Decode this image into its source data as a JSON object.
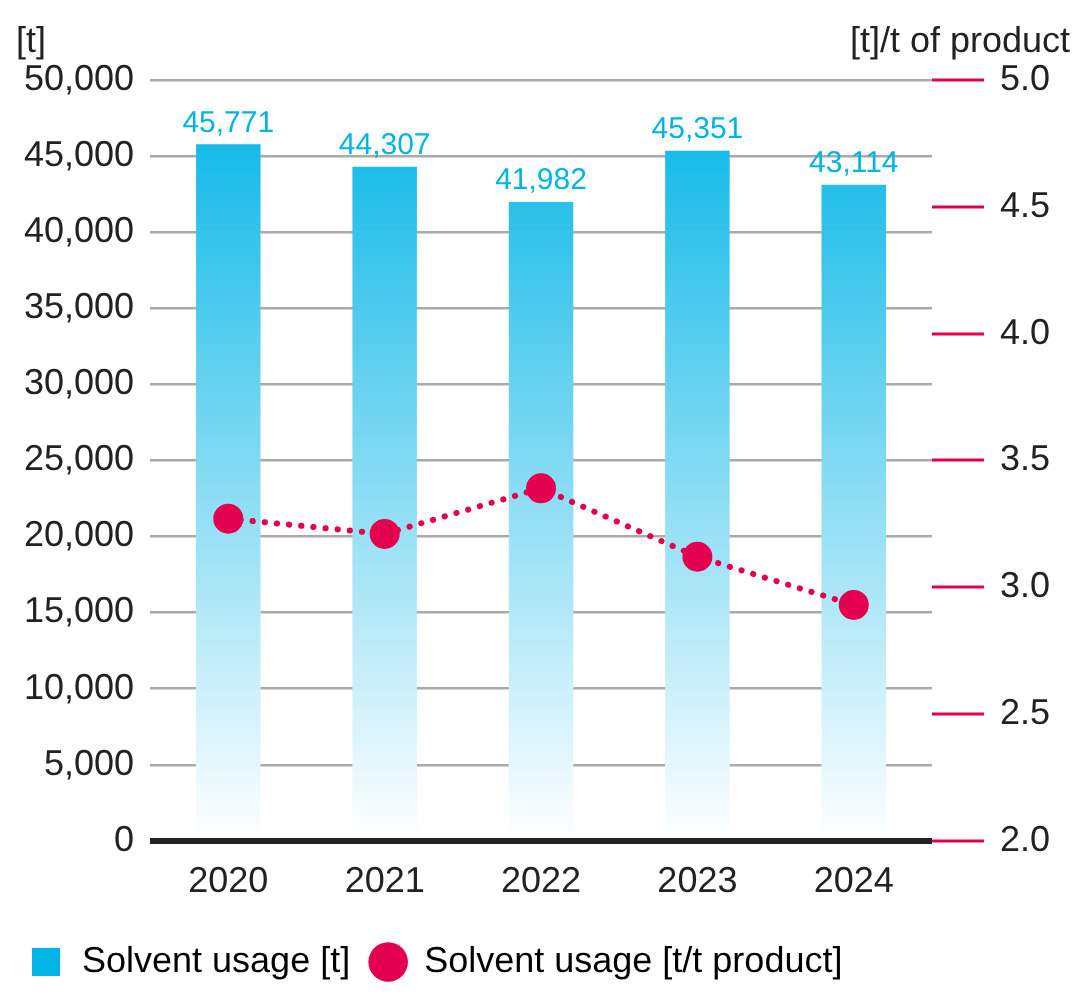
{
  "chart_data": {
    "type": "bar",
    "ylabel": "[t]",
    "y2label": "[t]/t of product",
    "categories": [
      "2020",
      "2021",
      "2022",
      "2023",
      "2024"
    ],
    "series": [
      {
        "name": "Solvent usage [t]",
        "color": "#00b4e6",
        "values": [
          45771,
          44307,
          41982,
          45351,
          43114
        ],
        "value_labels": [
          "45,771",
          "44,307",
          "41,982",
          "45,351",
          "43,114"
        ]
      },
      {
        "name": "Solvent usage [t/t product]",
        "type": "line",
        "axis": "y2",
        "color": "#e5004f",
        "marker": "circle",
        "line_style": "dotted",
        "values": [
          3.27,
          3.21,
          3.39,
          3.12,
          2.93
        ]
      }
    ],
    "ylim": [
      0,
      50000
    ],
    "yticks": [
      {
        "value": 0,
        "label": "0"
      },
      {
        "value": 5000,
        "label": "5,000"
      },
      {
        "value": 10000,
        "label": "10,000"
      },
      {
        "value": 15000,
        "label": "15,000"
      },
      {
        "value": 20000,
        "label": "20,000"
      },
      {
        "value": 25000,
        "label": "25,000"
      },
      {
        "value": 30000,
        "label": "30,000"
      },
      {
        "value": 35000,
        "label": "35,000"
      },
      {
        "value": 40000,
        "label": "40,000"
      },
      {
        "value": 45000,
        "label": "45,000"
      },
      {
        "value": 50000,
        "label": "50,000"
      }
    ],
    "y2lim": [
      2,
      5
    ],
    "y2ticks": [
      {
        "value": 2,
        "label": "2.0"
      },
      {
        "value": 2.5,
        "label": "2.5"
      },
      {
        "value": 3,
        "label": "3.0"
      },
      {
        "value": 3.5,
        "label": "3.5"
      },
      {
        "value": 4,
        "label": "4.0"
      },
      {
        "value": 4.5,
        "label": "4.5"
      },
      {
        "value": 5,
        "label": "5.0"
      }
    ],
    "grid": "y",
    "legend": "bottom"
  }
}
